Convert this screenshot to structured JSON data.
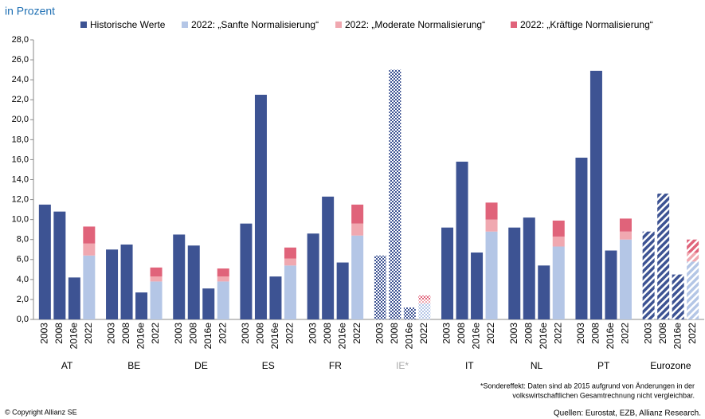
{
  "chart_data": {
    "type": "grouped_stacked_bar",
    "subtitle": "in Prozent",
    "categories": [
      "AT",
      "BE",
      "DE",
      "ES",
      "FR",
      "IE*",
      "IT",
      "NL",
      "PT",
      "Eurozone"
    ],
    "years": [
      "2003",
      "2008",
      "2016e",
      "2022"
    ],
    "pattern": [
      null,
      null,
      null,
      null,
      null,
      "checker",
      null,
      null,
      null,
      "stripes"
    ],
    "muted_label": [
      false,
      false,
      false,
      false,
      false,
      true,
      false,
      false,
      false,
      false
    ],
    "series": [
      {
        "name": "Historische Werte",
        "color": "#3d5393",
        "values": [
          [
            11.5,
            10.8,
            4.2
          ],
          [
            7.0,
            7.5,
            2.7
          ],
          [
            8.5,
            7.4,
            3.1
          ],
          [
            9.6,
            22.5,
            4.3
          ],
          [
            8.6,
            12.3,
            5.7
          ],
          [
            6.4,
            25.0,
            1.2
          ],
          [
            9.2,
            15.8,
            6.7
          ],
          [
            9.2,
            10.2,
            5.4
          ],
          [
            16.2,
            24.9,
            6.9
          ],
          [
            8.8,
            12.6,
            4.5
          ]
        ]
      },
      {
        "name": "2022: „Sanfte Normalisierung“",
        "color": "#b4c6e6",
        "values": [
          6.4,
          3.8,
          3.8,
          5.4,
          8.4,
          1.6,
          8.8,
          7.3,
          8.0,
          5.8
        ]
      },
      {
        "name": "2022: „Moderate Normalisierung“",
        "color": "#f0a8b0",
        "values": [
          1.2,
          0.5,
          0.5,
          0.7,
          1.2,
          0.4,
          1.2,
          1.0,
          0.8,
          0.9
        ]
      },
      {
        "name": "2022: „Kräftige Normalisierung“",
        "color": "#e0637a",
        "values": [
          1.7,
          0.9,
          0.8,
          1.1,
          1.9,
          0.4,
          1.7,
          1.6,
          1.3,
          1.3
        ]
      }
    ],
    "ylim": [
      0,
      28
    ],
    "yticks": [
      {
        "value": 0,
        "label": "0,0"
      },
      {
        "value": 2,
        "label": "2,0"
      },
      {
        "value": 4,
        "label": "4,0"
      },
      {
        "value": 6,
        "label": "6,0"
      },
      {
        "value": 8,
        "label": "8,0"
      },
      {
        "value": 10,
        "label": "10,0"
      },
      {
        "value": 12,
        "label": "12,0"
      },
      {
        "value": 14,
        "label": "14,0"
      },
      {
        "value": 16,
        "label": "16,0"
      },
      {
        "value": 18,
        "label": "18,0"
      },
      {
        "value": 20,
        "label": "20,0"
      },
      {
        "value": 22,
        "label": "22,0"
      },
      {
        "value": 24,
        "label": "24,0"
      },
      {
        "value": 26,
        "label": "26,0"
      },
      {
        "value": 28,
        "label": "28,0"
      }
    ],
    "footnote": [
      "*Sondereffekt: Daten sind ab 2015 aufgrund von Änderungen in der",
      "volkswirtschaftlichen Gesamtrechnung nicht vergleichbar."
    ],
    "copyright": "© Copyright Allianz SE",
    "source": "Quellen: Eurostat, EZB, Allianz Research."
  }
}
